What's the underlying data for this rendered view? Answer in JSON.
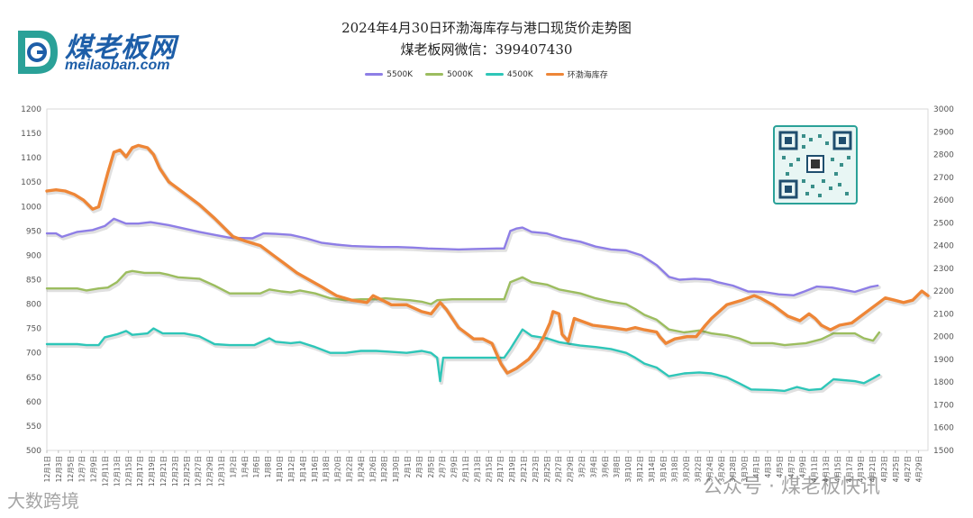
{
  "logo": {
    "cn": "煤老板网",
    "en": "meilaoban.com"
  },
  "title_line1": "2024年4月30日环渤海库存与港口现货价走势图",
  "title_line2": "煤老板网微信：399407430",
  "watermark_left": "大数跨境",
  "watermark_right": "公众号 · 煤老板快讯",
  "colors": {
    "s5500": "#8e7ee6",
    "s5000": "#9cbd5f",
    "s4500": "#2ec6b8",
    "inv": "#ee8637"
  },
  "chart_data": {
    "type": "line",
    "title": "2024年4月30日环渤海库存与港口现货价走势图",
    "left_axis": {
      "ylim": [
        500,
        1200
      ],
      "ticks": [
        500,
        550,
        600,
        650,
        700,
        750,
        800,
        850,
        900,
        950,
        1000,
        1050,
        1100,
        1150,
        1200
      ]
    },
    "right_axis": {
      "ylim": [
        1500,
        3000
      ],
      "ticks": [
        1500,
        1600,
        1700,
        1800,
        1900,
        2000,
        2100,
        2200,
        2300,
        2400,
        2500,
        2600,
        2700,
        2800,
        2900,
        3000
      ]
    },
    "legend": [
      "5500K",
      "5000K",
      "4500K",
      "环渤海库存"
    ],
    "x_start": "12月1日",
    "x_labels": [
      "12月1日",
      "12月3日",
      "12月5日",
      "12月7日",
      "12月9日",
      "12月11日",
      "12月13日",
      "12月15日",
      "12月17日",
      "12月19日",
      "12月21日",
      "12月23日",
      "12月25日",
      "12月27日",
      "12月29日",
      "12月31日",
      "1月2日",
      "1月4日",
      "1月6日",
      "1月8日",
      "1月10日",
      "1月12日",
      "1月14日",
      "1月16日",
      "1月18日",
      "1月20日",
      "1月22日",
      "1月24日",
      "1月26日",
      "1月28日",
      "1月30日",
      "2月1日",
      "2月3日",
      "2月5日",
      "2月7日",
      "2月9日",
      "2月11日",
      "2月13日",
      "2月15日",
      "2月17日",
      "2月19日",
      "2月21日",
      "2月23日",
      "2月25日",
      "2月27日",
      "2月29日",
      "3月2日",
      "3月4日",
      "3月6日",
      "3月8日",
      "3月10日",
      "3月12日",
      "3月14日",
      "3月16日",
      "3月18日",
      "3月20日",
      "3月22日",
      "3月24日",
      "3月26日",
      "3月28日",
      "3月30日",
      "4月1日",
      "4月3日",
      "4月5日",
      "4月7日",
      "4月9日",
      "4月11日",
      "4月13日",
      "4月15日",
      "4月17日",
      "4月19日",
      "4月21日",
      "4月23日",
      "4月25日",
      "4月27日",
      "4月29日"
    ],
    "series": [
      {
        "name": "5500K",
        "axis": "left",
        "points": [
          [
            0,
            945
          ],
          [
            6,
            945
          ],
          [
            10,
            938
          ],
          [
            20,
            948
          ],
          [
            30,
            952
          ],
          [
            38,
            960
          ],
          [
            44,
            975
          ],
          [
            52,
            965
          ],
          [
            60,
            965
          ],
          [
            68,
            968
          ],
          [
            80,
            962
          ],
          [
            90,
            955
          ],
          [
            100,
            948
          ],
          [
            110,
            942
          ],
          [
            120,
            936
          ],
          [
            135,
            935
          ],
          [
            142,
            945
          ],
          [
            150,
            944
          ],
          [
            160,
            942
          ],
          [
            170,
            935
          ],
          [
            180,
            926
          ],
          [
            190,
            922
          ],
          [
            200,
            919
          ],
          [
            210,
            918
          ],
          [
            220,
            917
          ],
          [
            230,
            917
          ],
          [
            240,
            916
          ],
          [
            250,
            914
          ],
          [
            262,
            913
          ],
          [
            270,
            912
          ],
          [
            280,
            913
          ],
          [
            295,
            914
          ],
          [
            300,
            914
          ],
          [
            304,
            950
          ],
          [
            308,
            955
          ],
          [
            312,
            957
          ],
          [
            318,
            948
          ],
          [
            328,
            945
          ],
          [
            338,
            935
          ],
          [
            350,
            928
          ],
          [
            360,
            918
          ],
          [
            370,
            912
          ],
          [
            380,
            910
          ],
          [
            390,
            900
          ],
          [
            395,
            890
          ],
          [
            400,
            880
          ],
          [
            408,
            856
          ],
          [
            415,
            850
          ],
          [
            425,
            852
          ],
          [
            435,
            850
          ],
          [
            440,
            845
          ],
          [
            450,
            838
          ],
          [
            460,
            826
          ],
          [
            470,
            825
          ],
          [
            480,
            820
          ],
          [
            490,
            818
          ],
          [
            497,
            826
          ],
          [
            505,
            836
          ],
          [
            515,
            834
          ],
          [
            525,
            828
          ],
          [
            530,
            825
          ],
          [
            540,
            835
          ],
          [
            545,
            838
          ]
        ]
      },
      {
        "name": "5000K",
        "axis": "left",
        "points": [
          [
            0,
            832
          ],
          [
            20,
            832
          ],
          [
            26,
            828
          ],
          [
            34,
            832
          ],
          [
            40,
            834
          ],
          [
            46,
            845
          ],
          [
            52,
            865
          ],
          [
            56,
            868
          ],
          [
            64,
            864
          ],
          [
            74,
            864
          ],
          [
            80,
            860
          ],
          [
            86,
            855
          ],
          [
            100,
            852
          ],
          [
            110,
            838
          ],
          [
            120,
            822
          ],
          [
            140,
            822
          ],
          [
            146,
            830
          ],
          [
            154,
            826
          ],
          [
            160,
            824
          ],
          [
            166,
            828
          ],
          [
            176,
            822
          ],
          [
            186,
            812
          ],
          [
            196,
            808
          ],
          [
            206,
            810
          ],
          [
            216,
            810
          ],
          [
            222,
            812
          ],
          [
            230,
            810
          ],
          [
            238,
            808
          ],
          [
            246,
            805
          ],
          [
            252,
            800
          ],
          [
            256,
            808
          ],
          [
            266,
            810
          ],
          [
            280,
            810
          ],
          [
            296,
            810
          ],
          [
            300,
            810
          ],
          [
            304,
            845
          ],
          [
            312,
            855
          ],
          [
            318,
            845
          ],
          [
            328,
            840
          ],
          [
            336,
            830
          ],
          [
            350,
            822
          ],
          [
            360,
            812
          ],
          [
            370,
            805
          ],
          [
            380,
            800
          ],
          [
            386,
            790
          ],
          [
            392,
            778
          ],
          [
            400,
            768
          ],
          [
            408,
            748
          ],
          [
            418,
            742
          ],
          [
            428,
            746
          ],
          [
            436,
            740
          ],
          [
            446,
            736
          ],
          [
            454,
            730
          ],
          [
            462,
            720
          ],
          [
            476,
            720
          ],
          [
            484,
            716
          ],
          [
            498,
            720
          ],
          [
            508,
            728
          ],
          [
            516,
            740
          ],
          [
            530,
            740
          ],
          [
            536,
            730
          ],
          [
            542,
            725
          ],
          [
            546,
            742
          ]
        ]
      },
      {
        "name": "4500K",
        "axis": "left",
        "points": [
          [
            0,
            718
          ],
          [
            20,
            718
          ],
          [
            26,
            716
          ],
          [
            34,
            716
          ],
          [
            38,
            732
          ],
          [
            46,
            738
          ],
          [
            52,
            745
          ],
          [
            56,
            737
          ],
          [
            66,
            740
          ],
          [
            70,
            750
          ],
          [
            76,
            740
          ],
          [
            90,
            740
          ],
          [
            100,
            734
          ],
          [
            110,
            718
          ],
          [
            120,
            716
          ],
          [
            136,
            716
          ],
          [
            146,
            730
          ],
          [
            150,
            723
          ],
          [
            160,
            720
          ],
          [
            166,
            722
          ],
          [
            176,
            712
          ],
          [
            186,
            700
          ],
          [
            196,
            700
          ],
          [
            206,
            704
          ],
          [
            216,
            704
          ],
          [
            226,
            702
          ],
          [
            236,
            700
          ],
          [
            246,
            704
          ],
          [
            252,
            700
          ],
          [
            256,
            690
          ],
          [
            258,
            642
          ],
          [
            260,
            690
          ],
          [
            266,
            690
          ],
          [
            280,
            690
          ],
          [
            296,
            690
          ],
          [
            300,
            690
          ],
          [
            304,
            708
          ],
          [
            312,
            748
          ],
          [
            318,
            735
          ],
          [
            328,
            730
          ],
          [
            336,
            722
          ],
          [
            350,
            715
          ],
          [
            360,
            712
          ],
          [
            370,
            708
          ],
          [
            380,
            700
          ],
          [
            386,
            690
          ],
          [
            392,
            678
          ],
          [
            400,
            670
          ],
          [
            408,
            652
          ],
          [
            418,
            658
          ],
          [
            428,
            660
          ],
          [
            436,
            658
          ],
          [
            446,
            650
          ],
          [
            454,
            638
          ],
          [
            462,
            625
          ],
          [
            476,
            624
          ],
          [
            484,
            622
          ],
          [
            492,
            630
          ],
          [
            500,
            624
          ],
          [
            508,
            626
          ],
          [
            516,
            646
          ],
          [
            530,
            642
          ],
          [
            536,
            638
          ],
          [
            542,
            648
          ],
          [
            546,
            655
          ]
        ]
      },
      {
        "name": "环渤海库存",
        "axis": "right",
        "points": [
          [
            0,
            2640
          ],
          [
            6,
            2645
          ],
          [
            12,
            2640
          ],
          [
            18,
            2625
          ],
          [
            24,
            2600
          ],
          [
            30,
            2560
          ],
          [
            34,
            2570
          ],
          [
            40,
            2720
          ],
          [
            44,
            2810
          ],
          [
            48,
            2820
          ],
          [
            52,
            2790
          ],
          [
            56,
            2830
          ],
          [
            60,
            2840
          ],
          [
            66,
            2830
          ],
          [
            70,
            2800
          ],
          [
            74,
            2740
          ],
          [
            80,
            2680
          ],
          [
            86,
            2650
          ],
          [
            92,
            2620
          ],
          [
            100,
            2580
          ],
          [
            110,
            2520
          ],
          [
            116,
            2480
          ],
          [
            122,
            2440
          ],
          [
            130,
            2420
          ],
          [
            140,
            2400
          ],
          [
            148,
            2360
          ],
          [
            156,
            2320
          ],
          [
            164,
            2280
          ],
          [
            172,
            2250
          ],
          [
            180,
            2220
          ],
          [
            190,
            2180
          ],
          [
            200,
            2160
          ],
          [
            210,
            2150
          ],
          [
            214,
            2180
          ],
          [
            220,
            2160
          ],
          [
            226,
            2140
          ],
          [
            236,
            2140
          ],
          [
            246,
            2110
          ],
          [
            252,
            2100
          ],
          [
            258,
            2150
          ],
          [
            262,
            2120
          ],
          [
            270,
            2040
          ],
          [
            280,
            1990
          ],
          [
            286,
            1990
          ],
          [
            292,
            1970
          ],
          [
            298,
            1880
          ],
          [
            302,
            1840
          ],
          [
            308,
            1860
          ],
          [
            316,
            1900
          ],
          [
            322,
            1950
          ],
          [
            326,
            2000
          ],
          [
            330,
            2060
          ],
          [
            332,
            2110
          ],
          [
            336,
            2100
          ],
          [
            338,
            2010
          ],
          [
            342,
            1980
          ],
          [
            346,
            2080
          ],
          [
            350,
            2070
          ],
          [
            358,
            2050
          ],
          [
            370,
            2040
          ],
          [
            380,
            2030
          ],
          [
            386,
            2040
          ],
          [
            392,
            2030
          ],
          [
            400,
            2020
          ],
          [
            402,
            2000
          ],
          [
            406,
            1970
          ],
          [
            412,
            1990
          ],
          [
            420,
            2000
          ],
          [
            426,
            2000
          ],
          [
            432,
            2050
          ],
          [
            436,
            2080
          ],
          [
            446,
            2140
          ],
          [
            456,
            2160
          ],
          [
            464,
            2180
          ],
          [
            468,
            2170
          ],
          [
            476,
            2140
          ],
          [
            486,
            2090
          ],
          [
            494,
            2070
          ],
          [
            500,
            2100
          ],
          [
            504,
            2080
          ],
          [
            508,
            2050
          ],
          [
            514,
            2030
          ],
          [
            520,
            2050
          ],
          [
            528,
            2060
          ],
          [
            534,
            2090
          ],
          [
            540,
            2120
          ],
          [
            546,
            2150
          ],
          [
            550,
            2170
          ],
          [
            556,
            2160
          ],
          [
            562,
            2150
          ],
          [
            568,
            2160
          ],
          [
            574,
            2200
          ],
          [
            578,
            2180
          ]
        ]
      }
    ]
  }
}
